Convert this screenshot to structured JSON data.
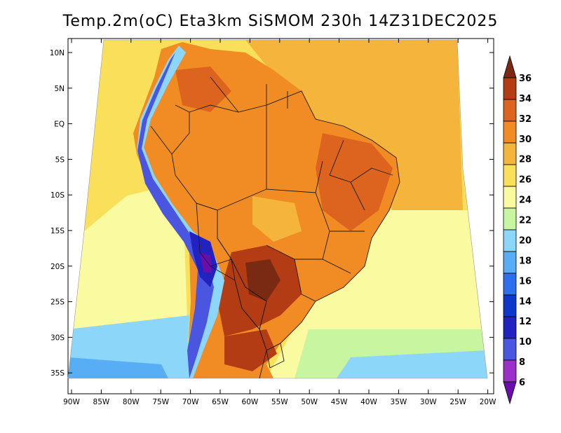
{
  "title": "Temp.2m(oC) Eta3km SiSMOM 230h 14Z31DEC2025",
  "variable": "Temp.2m",
  "units": "oC",
  "model": "Eta3km",
  "run": "SiSMOM",
  "forecast_hour": "230h",
  "valid_time": "14Z31DEC2025",
  "lat_labels": [
    "10N",
    "5N",
    "EQ",
    "5S",
    "10S",
    "15S",
    "20S",
    "25S",
    "30S",
    "35S"
  ],
  "lon_labels": [
    "90W",
    "85W",
    "80W",
    "75W",
    "70W",
    "65W",
    "60W",
    "55W",
    "50W",
    "45W",
    "40W",
    "35W",
    "30W",
    "25W",
    "20W"
  ],
  "colorbar": {
    "levels": [
      6,
      8,
      10,
      12,
      14,
      16,
      18,
      20,
      22,
      24,
      26,
      28,
      30,
      32,
      34,
      36
    ],
    "labels": [
      "6",
      "8",
      "10",
      "12",
      "14",
      "16",
      "18",
      "20",
      "22",
      "24",
      "26",
      "28",
      "30",
      "32",
      "34",
      "36"
    ],
    "colors": [
      "#6a0dad",
      "#9b30c8",
      "#4a56e0",
      "#2222c0",
      "#0d38c9",
      "#2e6ff0",
      "#57aef5",
      "#8cd6fa",
      "#c8f5a0",
      "#fafaa0",
      "#fae05a",
      "#f5b43c",
      "#f08c23",
      "#dc641e",
      "#b43c14",
      "#7a2a12"
    ]
  },
  "colors": {
    "ocean_warm": "#fae05a",
    "ocean_mild": "#fafaa0",
    "ocean_cool": "#8cd6fa",
    "land_hot": "#f08c23",
    "andes_cold": "#2222c0",
    "border": "#1a1a1a"
  }
}
